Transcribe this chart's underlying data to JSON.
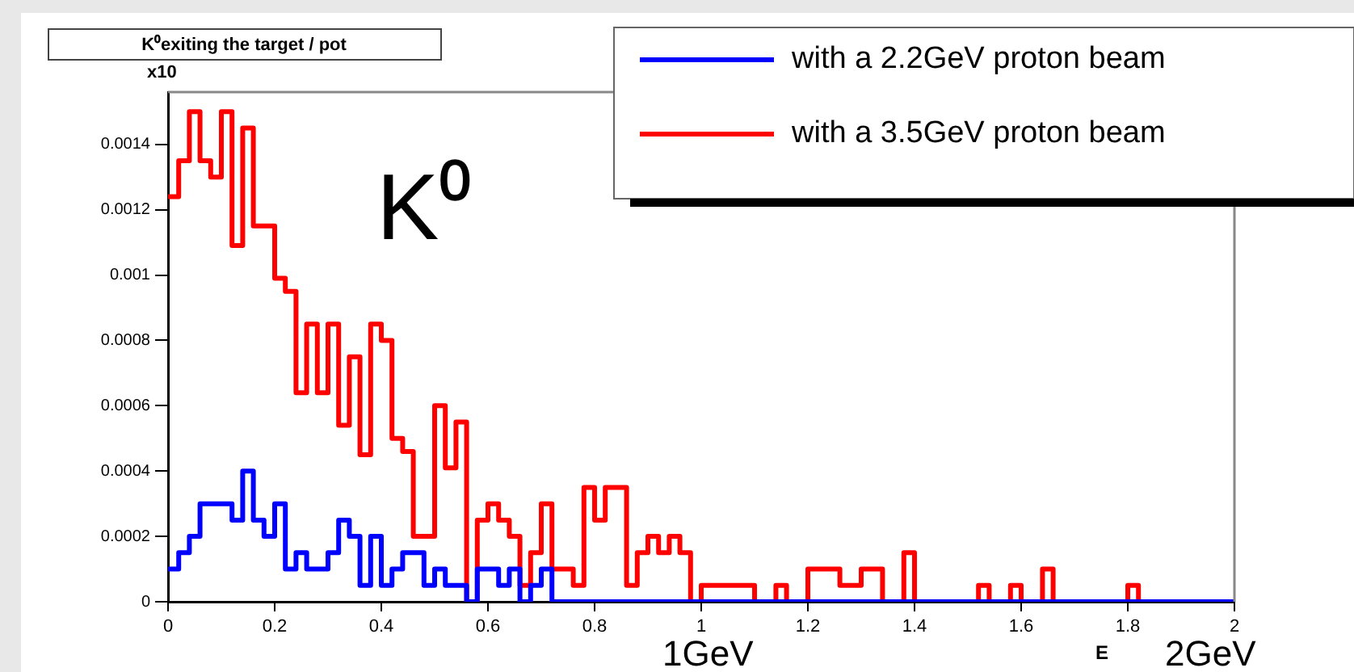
{
  "chart_data": {
    "type": "histogram",
    "title": "K⁰exiting the target / pot",
    "xlabel": "E",
    "annotations": [
      "K⁰",
      "x10",
      "1GeV",
      "2GeV"
    ],
    "bins": [
      0,
      0.02,
      0.04,
      0.06,
      0.08,
      0.1,
      0.12,
      0.14,
      0.16,
      0.18,
      0.2,
      0.22,
      0.24,
      0.26,
      0.28,
      0.3,
      0.32,
      0.34,
      0.36,
      0.38,
      0.4,
      0.42,
      0.44,
      0.46,
      0.48,
      0.5,
      0.52,
      0.54,
      0.56,
      0.58,
      0.6,
      0.62,
      0.64,
      0.66,
      0.68,
      0.7,
      0.72,
      0.74,
      0.76,
      0.78,
      0.8,
      0.82,
      0.84,
      0.86,
      0.88,
      0.9,
      0.92,
      0.94,
      0.96,
      0.98,
      1,
      1.02,
      1.04,
      1.06,
      1.08,
      1.1,
      1.12,
      1.14,
      1.16,
      1.18,
      1.2,
      1.22,
      1.24,
      1.26,
      1.28,
      1.3,
      1.32,
      1.34,
      1.36,
      1.38,
      1.4,
      1.42,
      1.44,
      1.46,
      1.48,
      1.5,
      1.52,
      1.54,
      1.56,
      1.58,
      1.6,
      1.62,
      1.64,
      1.66,
      1.68,
      1.7,
      1.72,
      1.74,
      1.76,
      1.78,
      1.8,
      1.82,
      1.84,
      1.86,
      1.88,
      1.9,
      1.92,
      1.94,
      1.96,
      1.98,
      2
    ],
    "series": [
      {
        "name": "with a 2.2GeV proton beam",
        "color": "#0000ff",
        "values": [
          0.0001,
          0.00015,
          0.0002,
          0.0003,
          0.0003,
          0.0003,
          0.00025,
          0.0004,
          0.00025,
          0.0002,
          0.0003,
          0.0001,
          0.00015,
          0.0001,
          0.0001,
          0.00015,
          0.00025,
          0.0002,
          5e-05,
          0.0002,
          5e-05,
          0.0001,
          0.00015,
          0.00015,
          5e-05,
          0.0001,
          5e-05,
          5e-05,
          0,
          0.0001,
          0.0001,
          5e-05,
          0.0001,
          0,
          5e-05,
          0.0001,
          0,
          0,
          0,
          0,
          0,
          0,
          0,
          0,
          0,
          0,
          0,
          0,
          0,
          0,
          0,
          0,
          0,
          0,
          0,
          0,
          0,
          0,
          0,
          0,
          0,
          0,
          0,
          0,
          0,
          0,
          0,
          0,
          0,
          0,
          0,
          0,
          0,
          0,
          0,
          0,
          0,
          0,
          0,
          0,
          0,
          0,
          0,
          0,
          0,
          0,
          0,
          0,
          0,
          0,
          0,
          0,
          0,
          0,
          0,
          0,
          0,
          0,
          0,
          0
        ]
      },
      {
        "name": "with a 3.5GeV proton beam",
        "color": "#ff0000",
        "values": [
          0.00124,
          0.00135,
          0.0015,
          0.00135,
          0.0013,
          0.0015,
          0.00109,
          0.00145,
          0.00115,
          0.00115,
          0.00099,
          0.00095,
          0.00064,
          0.00085,
          0.00064,
          0.00085,
          0.00054,
          0.00075,
          0.00045,
          0.00085,
          0.0008,
          0.0005,
          0.00046,
          0.0002,
          0.0002,
          0.0006,
          0.00041,
          0.00055,
          0,
          0.00025,
          0.0003,
          0.00025,
          0.0002,
          5e-05,
          0.00015,
          0.0003,
          0.0001,
          0.0001,
          5e-05,
          0.00035,
          0.00025,
          0.00035,
          0.00035,
          5e-05,
          0.00015,
          0.0002,
          0.00015,
          0.0002,
          0.00015,
          0,
          5e-05,
          5e-05,
          5e-05,
          5e-05,
          5e-05,
          0,
          0,
          5e-05,
          0,
          0,
          0.0001,
          0.0001,
          0.0001,
          5e-05,
          5e-05,
          0.0001,
          0.0001,
          0,
          0,
          0.00015,
          0,
          0,
          0,
          0,
          0,
          0,
          5e-05,
          0,
          0,
          5e-05,
          0,
          0,
          0.0001,
          0,
          0,
          0,
          0,
          0,
          0,
          0,
          5e-05,
          0,
          0,
          0,
          0,
          0,
          0,
          0,
          0,
          0
        ]
      }
    ],
    "xlim": [
      0,
      2
    ],
    "ylim": [
      0,
      0.00156
    ],
    "xticks": [
      0,
      0.2,
      0.4,
      0.6,
      0.8,
      1,
      1.2,
      1.4,
      1.6,
      1.8,
      2
    ],
    "yticks": [
      0,
      0.0002,
      0.0004,
      0.0006,
      0.0008,
      0.001,
      0.0012,
      0.0014
    ],
    "grid": false,
    "legend": "top right"
  }
}
